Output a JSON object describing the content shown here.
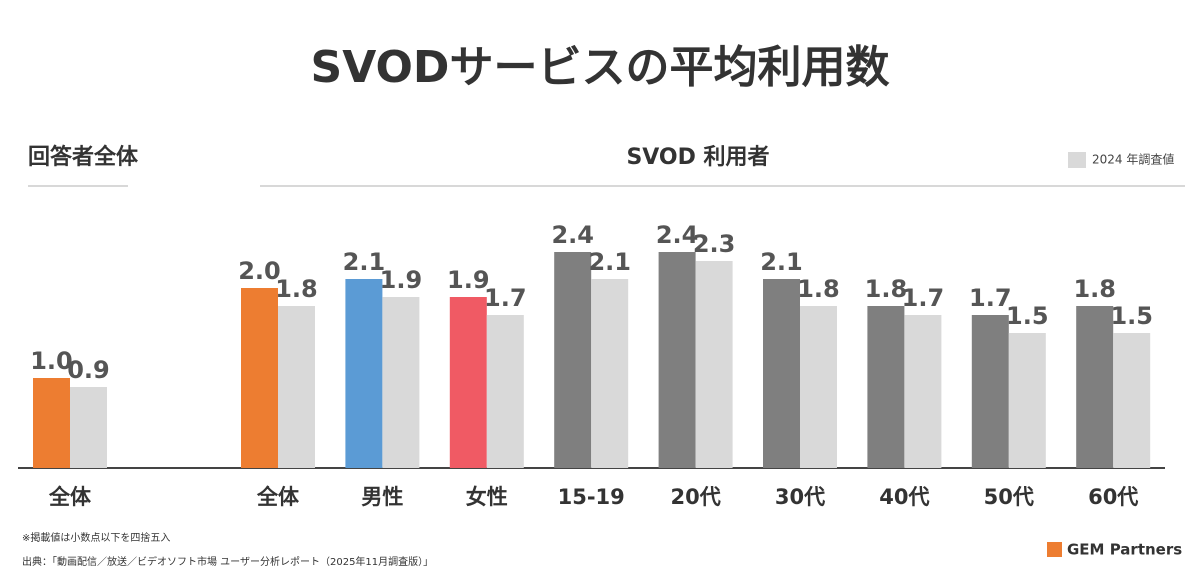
{
  "title": "SVODサービスの平均利用数",
  "chart_data": [
    {
      "type": "bar",
      "title": "回答者全体",
      "categories": [
        "全体"
      ],
      "series": [
        {
          "color": "#ed7d31",
          "values": [
            1.0
          ],
          "value_labels": [
            "1.0"
          ]
        },
        {
          "color": "#d9d9d9",
          "values": [
            0.9
          ],
          "value_labels": [
            "0.9"
          ]
        }
      ],
      "ylim": [
        0,
        2.6
      ]
    },
    {
      "type": "bar",
      "title": "SVOD 利用者",
      "categories": [
        "全体",
        "男性",
        "女性",
        "15-19",
        "20代",
        "30代",
        "40代",
        "50代",
        "60代"
      ],
      "series": [
        {
          "colors": [
            "#ed7d31",
            "#5b9bd5",
            "#f05a64",
            "#7f7f7f",
            "#7f7f7f",
            "#7f7f7f",
            "#7f7f7f",
            "#7f7f7f",
            "#7f7f7f"
          ],
          "values": [
            2.0,
            2.1,
            1.9,
            2.4,
            2.4,
            2.1,
            1.8,
            1.7,
            1.8
          ],
          "value_labels": [
            "2.0",
            "2.1",
            "1.9",
            "2.4",
            "2.4",
            "2.1",
            "1.8",
            "1.7",
            "1.8"
          ]
        },
        {
          "name": "2024 年調査値",
          "color": "#d9d9d9",
          "values": [
            1.8,
            1.9,
            1.7,
            2.1,
            2.3,
            1.8,
            1.7,
            1.5,
            1.5
          ],
          "value_labels": [
            "1.8",
            "1.9",
            "1.7",
            "2.1",
            "2.3",
            "1.8",
            "1.7",
            "1.5",
            "1.5"
          ]
        }
      ],
      "ylim": [
        0,
        2.6
      ],
      "legend": "top-right"
    }
  ],
  "notes": [
    "※掲載値は小数点以下を四捨五入",
    "出典：「動画配信／放送／ビデオソフト市場 ユーザー分析レポート（2025年11月調査版）」"
  ],
  "logo": "GEM Partners"
}
